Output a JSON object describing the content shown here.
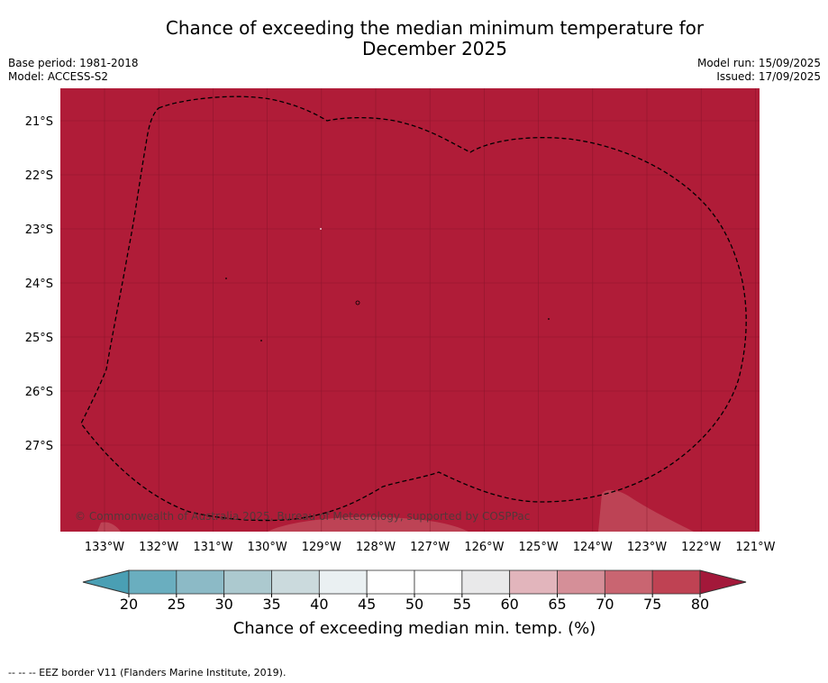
{
  "header": {
    "title_line1": "Chance of exceeding the median minimum temperature for",
    "title_line2": "December 2025",
    "base_period": "Base period: 1981-2018",
    "model": "Model: ACCESS-S2",
    "model_run": "Model run: 15/09/2025",
    "issued": "Issued: 17/09/2025"
  },
  "map": {
    "copyright": "© Commonwealth of Australia 2025, Bureau of Meteorology, supported by COSPPac",
    "fill_color": "#b01c38",
    "lon_labels": [
      "133°W",
      "132°W",
      "131°W",
      "130°W",
      "129°W",
      "128°W",
      "127°W",
      "126°W",
      "125°W",
      "124°W",
      "123°W",
      "122°W",
      "121°W"
    ],
    "lat_labels": [
      "21°S",
      "22°S",
      "23°S",
      "24°S",
      "25°S",
      "26°S",
      "27°S"
    ]
  },
  "colorbar": {
    "ticks": [
      "20",
      "25",
      "30",
      "35",
      "40",
      "45",
      "50",
      "55",
      "60",
      "65",
      "70",
      "75",
      "80"
    ],
    "colors": [
      "#6aaebf",
      "#8cbac6",
      "#acc9cf",
      "#cbdadd",
      "#eaf0f2",
      "#ffffff",
      "#ffffff",
      "#e9e9ea",
      "#e2b5bc",
      "#d58f98",
      "#c96571",
      "#bf4253"
    ],
    "under_color": "#4a9fb4",
    "over_color": "#a3183a",
    "label": "Chance of exceeding median min. temp. (%)"
  },
  "footer": {
    "legend": "--  --  -- EEZ border V11 (Flanders Marine Institute, 2019)."
  }
}
